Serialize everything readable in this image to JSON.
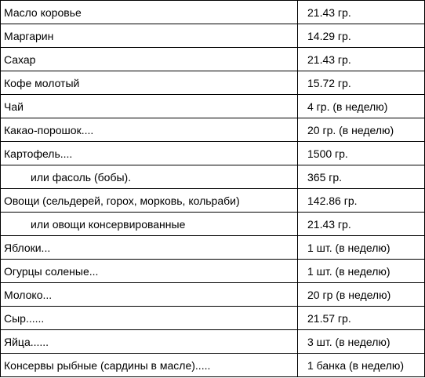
{
  "table": {
    "rows": [
      {
        "product": "Масло коровье",
        "amount": "21.43 гр.",
        "indent": false
      },
      {
        "product": "Маргарин",
        "amount": "14.29 гр.",
        "indent": false
      },
      {
        "product": "Сахар",
        "amount": "21.43 гр.",
        "indent": false
      },
      {
        "product": "Кофе молотый",
        "amount": "15.72 гр.",
        "indent": false
      },
      {
        "product": "Чай",
        "amount": "4 гр. (в неделю)",
        "indent": false
      },
      {
        "product": "Какао-порошок....",
        "amount": "20 гр. (в неделю)",
        "indent": false
      },
      {
        "product": "Картофель....",
        "amount": "1500 гр.",
        "indent": false
      },
      {
        "product": "или фасоль (бобы).",
        "amount": "365 гр.",
        "indent": true
      },
      {
        "product": "Овощи (сельдерей, горох, морковь, кольраби)",
        "amount": "142.86 гр.",
        "indent": false
      },
      {
        "product": "или овощи консервированные",
        "amount": "21.43 гр.",
        "indent": true
      },
      {
        "product": "Яблоки...",
        "amount": "1 шт. (в неделю)",
        "indent": false
      },
      {
        "product": "Огурцы соленые...",
        "amount": "1 шт. (в неделю)",
        "indent": false
      },
      {
        "product": "Молоко...",
        "amount": "20 гр (в неделю)",
        "indent": false
      },
      {
        "product": "Сыр......",
        "amount": "21.57 гр.",
        "indent": false
      },
      {
        "product": "Яйца......",
        "amount": "3 шт. (в неделю)",
        "indent": false
      },
      {
        "product": "Консервы рыбные (сардины в масле).....",
        "amount": "1 банка (в неделю)",
        "indent": false
      }
    ]
  }
}
